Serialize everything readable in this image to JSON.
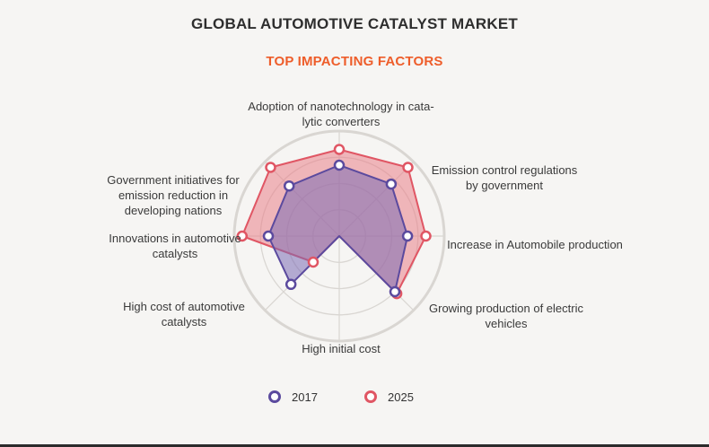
{
  "title": "GLOBAL AUTOMOTIVE CATALYST MARKET",
  "subtitle": "TOP IMPACTING FACTORS",
  "colors": {
    "s2017_stroke": "#5b4a9e",
    "s2017_fill": "#7c6bb5",
    "s2025_stroke": "#e05664",
    "s2025_fill": "#ea7f88",
    "grid": "#d9d6d2"
  },
  "chart_data": {
    "type": "radar",
    "title": "TOP IMPACTING FACTORS",
    "axes": [
      {
        "label_lines": [
          "Adoption of nanotechnology in cata-",
          "lytic converters"
        ]
      },
      {
        "label_lines": [
          "Emission control regulations",
          "by government"
        ]
      },
      {
        "label_lines": [
          "Increase in Automobile production"
        ]
      },
      {
        "label_lines": [
          "Growing production of electric",
          "vehicles"
        ]
      },
      {
        "label_lines": [
          "High initial cost"
        ]
      },
      {
        "label_lines": [
          "High cost of automotive",
          "catalysts"
        ]
      },
      {
        "label_lines": [
          "Innovations in automotive",
          "catalysts"
        ]
      },
      {
        "label_lines": [
          "Government initiatives for",
          "emission reduction in",
          "developing nations"
        ]
      }
    ],
    "rmax": 4,
    "rings": 4,
    "series": [
      {
        "name": "2017",
        "values": [
          2.7,
          2.8,
          2.6,
          3.0,
          0.0,
          2.6,
          2.7,
          2.7
        ]
      },
      {
        "name": "2025",
        "values": [
          3.3,
          3.7,
          3.3,
          3.1,
          0.0,
          1.4,
          3.7,
          3.7
        ]
      }
    ]
  },
  "legend": [
    "2017",
    "2025"
  ]
}
